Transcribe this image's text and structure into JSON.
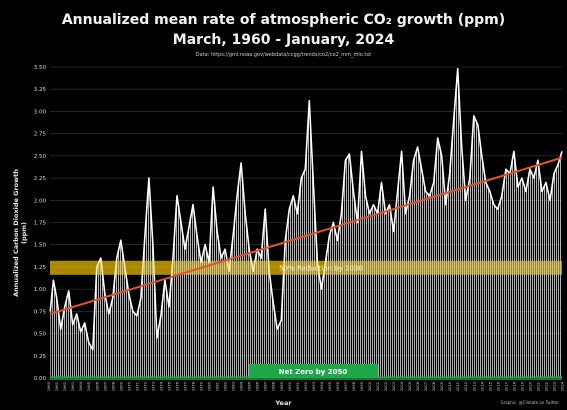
{
  "chart_data": {
    "type": "area",
    "title": "Annualized mean rate of atmospheric CO₂ growth (ppm)",
    "subtitle": "March, 1960 - January, 2024",
    "source": "Data: https://gml.noaa.gov/webdata/ccgg/trends/co2/co2_mm_mlo.txt",
    "credit": "Graphic: @Climate on Twitter",
    "xlabel": "Year",
    "ylabel": "Annualized Carbon Dioxide Growth (ppm)",
    "ylim": [
      0,
      3.5
    ],
    "yticks": [
      "0.00",
      "0.25",
      "0.50",
      "0.75",
      "1.00",
      "1.25",
      "1.50",
      "1.75",
      "2.00",
      "2.25",
      "2.50",
      "2.75",
      "3.00",
      "3.25",
      "3.50"
    ],
    "xlim": [
      1960.17,
      2024.0
    ],
    "xticks": [
      "1960",
      "1961",
      "1962",
      "1963",
      "1964",
      "1965",
      "1966",
      "1967",
      "1968",
      "1969",
      "1970",
      "1971",
      "1972",
      "1973",
      "1974",
      "1975",
      "1976",
      "1977",
      "1978",
      "1979",
      "1980",
      "1981",
      "1982",
      "1983",
      "1984",
      "1985",
      "1986",
      "1987",
      "1988",
      "1989",
      "1990",
      "1991",
      "1992",
      "1993",
      "1994",
      "1995",
      "1996",
      "1997",
      "1998",
      "1999",
      "2000",
      "2001",
      "2002",
      "2003",
      "2004",
      "2005",
      "2006",
      "2007",
      "2008",
      "2009",
      "2010",
      "2011",
      "2012",
      "2013",
      "2014",
      "2015",
      "2016",
      "2017",
      "2018",
      "2019",
      "2020",
      "2021",
      "2022",
      "2023",
      "2024"
    ],
    "grid": true,
    "series": [
      {
        "color": "#ffffff",
        "x": [
          1960.2,
          1960.6,
          1961.0,
          1961.5,
          1962.0,
          1962.5,
          1963.0,
          1963.5,
          1964.0,
          1964.5,
          1965.0,
          1965.5,
          1966.0,
          1966.5,
          1967.0,
          1967.5,
          1968.0,
          1968.5,
          1969.0,
          1969.5,
          1970.0,
          1970.5,
          1971.0,
          1971.5,
          1972.0,
          1972.5,
          1973.0,
          1973.5,
          1974.0,
          1974.5,
          1975.0,
          1975.5,
          1976.0,
          1976.5,
          1977.0,
          1977.5,
          1978.0,
          1978.5,
          1979.0,
          1979.5,
          1980.0,
          1980.5,
          1981.0,
          1981.5,
          1982.0,
          1982.5,
          1983.0,
          1983.5,
          1984.0,
          1984.5,
          1985.0,
          1985.5,
          1986.0,
          1986.5,
          1987.0,
          1987.5,
          1988.0,
          1988.5,
          1989.0,
          1989.5,
          1990.0,
          1990.5,
          1991.0,
          1991.5,
          1992.0,
          1992.5,
          1993.0,
          1993.5,
          1994.0,
          1994.5,
          1995.0,
          1995.5,
          1996.0,
          1996.5,
          1997.0,
          1997.5,
          1998.0,
          1998.5,
          1999.0,
          1999.5,
          2000.0,
          2000.5,
          2001.0,
          2001.5,
          2002.0,
          2002.5,
          2003.0,
          2003.5,
          2004.0,
          2004.5,
          2005.0,
          2005.5,
          2006.0,
          2006.5,
          2007.0,
          2007.5,
          2008.0,
          2008.5,
          2009.0,
          2009.5,
          2010.0,
          2010.5,
          2011.0,
          2011.5,
          2012.0,
          2012.5,
          2013.0,
          2013.5,
          2014.0,
          2014.5,
          2015.0,
          2015.5,
          2016.0,
          2016.5,
          2017.0,
          2017.5,
          2018.0,
          2018.5,
          2019.0,
          2019.5,
          2020.0,
          2020.5,
          2021.0,
          2021.5,
          2022.0,
          2022.5,
          2023.0,
          2023.5,
          2024.0
        ],
        "y": [
          0.75,
          1.1,
          0.9,
          0.55,
          0.8,
          0.98,
          0.6,
          0.72,
          0.52,
          0.62,
          0.4,
          0.32,
          1.25,
          1.35,
          0.95,
          0.72,
          0.9,
          1.35,
          1.55,
          1.25,
          0.95,
          0.75,
          0.7,
          0.9,
          1.6,
          2.25,
          1.5,
          0.45,
          0.7,
          1.1,
          0.8,
          1.35,
          2.05,
          1.75,
          1.45,
          1.7,
          1.95,
          1.6,
          1.3,
          1.5,
          1.3,
          2.15,
          1.65,
          1.35,
          1.45,
          1.2,
          1.6,
          2.05,
          2.42,
          1.85,
          1.45,
          1.2,
          1.45,
          1.35,
          1.9,
          1.2,
          0.85,
          0.55,
          0.65,
          1.55,
          1.9,
          2.05,
          1.85,
          2.25,
          2.35,
          3.12,
          2.2,
          1.3,
          1.0,
          1.3,
          1.6,
          1.75,
          1.55,
          1.85,
          2.45,
          2.52,
          2.1,
          1.75,
          2.55,
          2.05,
          1.85,
          1.95,
          1.85,
          2.2,
          1.85,
          1.95,
          1.65,
          2.1,
          2.55,
          1.85,
          2.05,
          2.45,
          2.6,
          2.35,
          2.1,
          2.05,
          2.2,
          2.7,
          2.5,
          1.95,
          2.3,
          2.9,
          3.48,
          2.6,
          2.0,
          2.25,
          2.95,
          2.85,
          2.5,
          2.2,
          2.1,
          1.95,
          1.9,
          2.05,
          2.35,
          2.3,
          2.55,
          2.15,
          2.25,
          2.1,
          2.35,
          2.25,
          2.45,
          2.1,
          2.2,
          2.0,
          2.3,
          2.4,
          2.55
        ]
      }
    ],
    "trendline": {
      "color": "#e0532a",
      "x": [
        1960.17,
        2024.0
      ],
      "y": [
        0.72,
        2.48
      ]
    },
    "annotations": [
      {
        "label": "50% Reduction by 2030",
        "y": 1.24,
        "color": "#f2c200"
      },
      {
        "label": "Net Zero by 2050",
        "y": 0.0,
        "color": "#1ea84a"
      }
    ]
  }
}
